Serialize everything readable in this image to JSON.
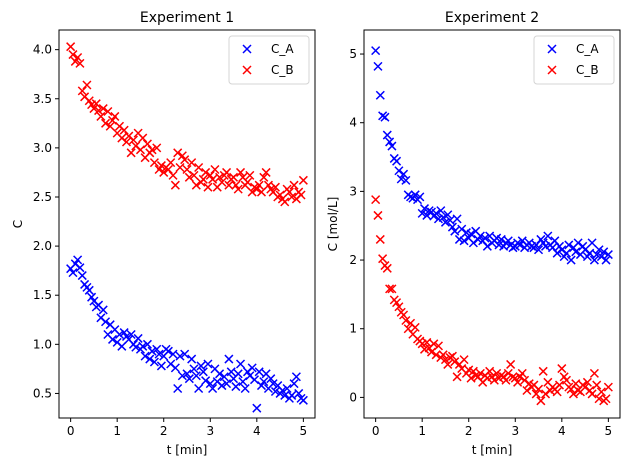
{
  "chart_data": [
    {
      "type": "scatter",
      "title": "Experiment 1",
      "xlabel": "t [min]",
      "ylabel": "C",
      "xlim": [
        -0.25,
        5.25
      ],
      "ylim": [
        0.25,
        4.2
      ],
      "xticks": [
        0,
        1,
        2,
        3,
        4,
        5
      ],
      "yticks": [
        0.5,
        1.0,
        1.5,
        2.0,
        2.5,
        3.0,
        3.5,
        4.0
      ],
      "ytick_labels": [
        "0.5",
        "1.0",
        "1.5",
        "2.0",
        "2.5",
        "3.0",
        "3.5",
        "4.0"
      ],
      "marker": "x",
      "legend_position": "top-right",
      "series": [
        {
          "name": "C_A",
          "color": "#0000ff",
          "x": [
            0.0,
            0.05,
            0.1,
            0.15,
            0.2,
            0.25,
            0.3,
            0.35,
            0.4,
            0.45,
            0.5,
            0.55,
            0.6,
            0.65,
            0.7,
            0.75,
            0.8,
            0.85,
            0.9,
            0.95,
            1.0,
            1.05,
            1.1,
            1.15,
            1.2,
            1.25,
            1.3,
            1.35,
            1.4,
            1.45,
            1.5,
            1.55,
            1.6,
            1.65,
            1.7,
            1.75,
            1.8,
            1.85,
            1.9,
            1.95,
            2.0,
            2.05,
            2.1,
            2.15,
            2.2,
            2.25,
            2.3,
            2.35,
            2.4,
            2.45,
            2.5,
            2.55,
            2.6,
            2.65,
            2.7,
            2.75,
            2.8,
            2.85,
            2.9,
            2.95,
            3.0,
            3.05,
            3.1,
            3.15,
            3.2,
            3.25,
            3.3,
            3.35,
            3.4,
            3.45,
            3.5,
            3.55,
            3.6,
            3.65,
            3.7,
            3.75,
            3.8,
            3.85,
            3.9,
            3.95,
            4.0,
            4.05,
            4.1,
            4.15,
            4.2,
            4.25,
            4.3,
            4.35,
            4.4,
            4.45,
            4.5,
            4.55,
            4.6,
            4.65,
            4.7,
            4.75,
            4.8,
            4.85,
            4.9,
            4.95,
            5.0
          ],
          "y": [
            1.77,
            1.73,
            1.82,
            1.86,
            1.78,
            1.7,
            1.61,
            1.58,
            1.55,
            1.48,
            1.44,
            1.38,
            1.4,
            1.27,
            1.35,
            1.23,
            1.1,
            1.2,
            1.05,
            1.15,
            1.02,
            1.1,
            0.98,
            1.12,
            1.08,
            1.05,
            1.1,
            1.0,
            0.97,
            1.06,
            0.95,
            0.98,
            0.88,
            1.0,
            0.85,
            0.93,
            0.82,
            0.95,
            0.9,
            0.78,
            0.88,
            0.95,
            0.93,
            0.8,
            0.9,
            0.76,
            0.55,
            0.88,
            0.68,
            0.9,
            0.7,
            0.65,
            0.85,
            0.75,
            0.68,
            0.55,
            0.78,
            0.72,
            0.63,
            0.8,
            0.6,
            0.55,
            0.75,
            0.62,
            0.7,
            0.58,
            0.67,
            0.6,
            0.85,
            0.72,
            0.65,
            0.57,
            0.7,
            0.8,
            0.62,
            0.55,
            0.72,
            0.68,
            0.76,
            0.64,
            0.35,
            0.72,
            0.58,
            0.62,
            0.7,
            0.55,
            0.65,
            0.6,
            0.52,
            0.58,
            0.5,
            0.53,
            0.48,
            0.55,
            0.45,
            0.48,
            0.6,
            0.67,
            0.5,
            0.45,
            0.43
          ]
        },
        {
          "name": "C_B",
          "color": "#ff0000",
          "x": [
            0.0,
            0.05,
            0.1,
            0.15,
            0.2,
            0.25,
            0.3,
            0.35,
            0.4,
            0.45,
            0.5,
            0.55,
            0.6,
            0.65,
            0.7,
            0.75,
            0.8,
            0.85,
            0.9,
            0.95,
            1.0,
            1.05,
            1.1,
            1.15,
            1.2,
            1.25,
            1.3,
            1.35,
            1.4,
            1.45,
            1.5,
            1.55,
            1.6,
            1.65,
            1.7,
            1.75,
            1.8,
            1.85,
            1.9,
            1.95,
            2.0,
            2.05,
            2.1,
            2.15,
            2.2,
            2.25,
            2.3,
            2.35,
            2.4,
            2.45,
            2.5,
            2.55,
            2.6,
            2.65,
            2.7,
            2.75,
            2.8,
            2.85,
            2.9,
            2.95,
            3.0,
            3.05,
            3.1,
            3.15,
            3.2,
            3.25,
            3.3,
            3.35,
            3.4,
            3.45,
            3.5,
            3.55,
            3.6,
            3.65,
            3.7,
            3.75,
            3.8,
            3.85,
            3.9,
            3.95,
            4.0,
            4.05,
            4.1,
            4.15,
            4.2,
            4.25,
            4.3,
            4.35,
            4.4,
            4.45,
            4.5,
            4.55,
            4.6,
            4.65,
            4.7,
            4.75,
            4.8,
            4.85,
            4.9,
            4.95,
            5.0
          ],
          "y": [
            4.03,
            3.95,
            3.88,
            3.92,
            3.86,
            3.58,
            3.52,
            3.64,
            3.48,
            3.44,
            3.4,
            3.45,
            3.38,
            3.32,
            3.4,
            3.25,
            3.37,
            3.22,
            3.28,
            3.32,
            3.15,
            3.22,
            3.1,
            3.18,
            3.06,
            3.12,
            2.95,
            3.08,
            3.02,
            3.15,
            2.98,
            3.1,
            2.9,
            3.04,
            2.95,
            2.98,
            2.85,
            3.0,
            2.78,
            2.82,
            2.75,
            2.8,
            2.78,
            2.85,
            2.72,
            2.62,
            2.95,
            2.8,
            2.92,
            2.88,
            2.78,
            2.7,
            2.85,
            2.72,
            2.62,
            2.8,
            2.65,
            2.68,
            2.75,
            2.6,
            2.72,
            2.68,
            2.78,
            2.6,
            2.7,
            2.65,
            2.72,
            2.75,
            2.62,
            2.68,
            2.7,
            2.62,
            2.58,
            2.75,
            2.7,
            2.62,
            2.65,
            2.72,
            2.55,
            2.6,
            2.58,
            2.62,
            2.55,
            2.7,
            2.75,
            2.62,
            2.58,
            2.55,
            2.6,
            2.5,
            2.52,
            2.48,
            2.45,
            2.58,
            2.55,
            2.5,
            2.62,
            2.48,
            2.55,
            2.52,
            2.67
          ]
        }
      ]
    },
    {
      "type": "scatter",
      "title": "Experiment 2",
      "xlabel": "t [min]",
      "ylabel": "C [mol/L]",
      "xlim": [
        -0.25,
        5.25
      ],
      "ylim": [
        -0.3,
        5.35
      ],
      "xticks": [
        0,
        1,
        2,
        3,
        4,
        5
      ],
      "yticks": [
        0,
        1,
        2,
        3,
        4,
        5
      ],
      "ytick_labels": [
        "0",
        "1",
        "2",
        "3",
        "4",
        "5"
      ],
      "marker": "x",
      "legend_position": "top-right",
      "series": [
        {
          "name": "C_A",
          "color": "#0000ff",
          "x": [
            0.0,
            0.05,
            0.1,
            0.15,
            0.2,
            0.25,
            0.3,
            0.35,
            0.4,
            0.45,
            0.5,
            0.55,
            0.6,
            0.65,
            0.7,
            0.75,
            0.8,
            0.85,
            0.9,
            0.95,
            1.0,
            1.05,
            1.1,
            1.15,
            1.2,
            1.25,
            1.3,
            1.35,
            1.4,
            1.45,
            1.5,
            1.55,
            1.6,
            1.65,
            1.7,
            1.75,
            1.8,
            1.85,
            1.9,
            1.95,
            2.0,
            2.05,
            2.1,
            2.15,
            2.2,
            2.25,
            2.3,
            2.35,
            2.4,
            2.45,
            2.5,
            2.55,
            2.6,
            2.65,
            2.7,
            2.75,
            2.8,
            2.85,
            2.9,
            2.95,
            3.0,
            3.05,
            3.1,
            3.15,
            3.2,
            3.25,
            3.3,
            3.35,
            3.4,
            3.45,
            3.5,
            3.55,
            3.6,
            3.65,
            3.7,
            3.75,
            3.8,
            3.85,
            3.9,
            3.95,
            4.0,
            4.05,
            4.1,
            4.15,
            4.2,
            4.25,
            4.3,
            4.35,
            4.4,
            4.45,
            4.5,
            4.55,
            4.6,
            4.65,
            4.7,
            4.75,
            4.8,
            4.85,
            4.9,
            4.95,
            5.0
          ],
          "y": [
            5.05,
            4.82,
            4.4,
            4.1,
            4.08,
            3.82,
            3.72,
            3.66,
            3.48,
            3.44,
            3.3,
            3.18,
            3.25,
            3.16,
            2.95,
            2.92,
            2.9,
            2.95,
            2.88,
            2.92,
            2.68,
            2.75,
            2.65,
            2.72,
            2.7,
            2.64,
            2.68,
            2.6,
            2.72,
            2.62,
            2.55,
            2.66,
            2.58,
            2.48,
            2.42,
            2.6,
            2.3,
            2.45,
            2.28,
            2.4,
            2.32,
            2.38,
            2.25,
            2.42,
            2.3,
            2.35,
            2.28,
            2.32,
            2.2,
            2.35,
            2.25,
            2.28,
            2.32,
            2.22,
            2.3,
            2.2,
            2.25,
            2.28,
            2.22,
            2.18,
            2.2,
            2.25,
            2.22,
            2.28,
            2.18,
            2.22,
            2.25,
            2.2,
            2.18,
            2.22,
            2.15,
            2.3,
            2.25,
            2.2,
            2.35,
            2.22,
            2.18,
            2.28,
            2.1,
            2.2,
            2.15,
            2.05,
            2.1,
            2.22,
            2.0,
            2.18,
            2.12,
            2.25,
            2.08,
            2.2,
            2.15,
            2.05,
            2.1,
            2.25,
            2.0,
            2.08,
            2.15,
            2.05,
            2.12,
            2.0,
            2.08
          ]
        },
        {
          "name": "C_B",
          "color": "#ff0000",
          "x": [
            0.0,
            0.05,
            0.1,
            0.15,
            0.2,
            0.25,
            0.3,
            0.35,
            0.4,
            0.45,
            0.5,
            0.55,
            0.6,
            0.65,
            0.7,
            0.75,
            0.8,
            0.85,
            0.9,
            0.95,
            1.0,
            1.05,
            1.1,
            1.15,
            1.2,
            1.25,
            1.3,
            1.35,
            1.4,
            1.45,
            1.5,
            1.55,
            1.6,
            1.65,
            1.7,
            1.75,
            1.8,
            1.85,
            1.9,
            1.95,
            2.0,
            2.05,
            2.1,
            2.15,
            2.2,
            2.25,
            2.3,
            2.35,
            2.4,
            2.45,
            2.5,
            2.55,
            2.6,
            2.65,
            2.7,
            2.75,
            2.8,
            2.85,
            2.9,
            2.95,
            3.0,
            3.05,
            3.1,
            3.15,
            3.2,
            3.25,
            3.3,
            3.35,
            3.4,
            3.45,
            3.5,
            3.55,
            3.6,
            3.65,
            3.7,
            3.75,
            3.8,
            3.85,
            3.9,
            3.95,
            4.0,
            4.05,
            4.1,
            4.15,
            4.2,
            4.25,
            4.3,
            4.35,
            4.4,
            4.45,
            4.5,
            4.55,
            4.6,
            4.65,
            4.7,
            4.75,
            4.8,
            4.85,
            4.9,
            4.95,
            5.0
          ],
          "y": [
            2.88,
            2.65,
            2.3,
            2.02,
            1.92,
            1.88,
            1.58,
            1.58,
            1.42,
            1.38,
            1.32,
            1.24,
            1.2,
            1.12,
            1.0,
            1.08,
            0.92,
            1.02,
            0.85,
            0.82,
            0.78,
            0.7,
            0.8,
            0.72,
            0.66,
            0.78,
            0.62,
            0.75,
            0.58,
            0.62,
            0.55,
            0.48,
            0.58,
            0.6,
            0.52,
            0.3,
            0.48,
            0.42,
            0.55,
            0.35,
            0.4,
            0.28,
            0.38,
            0.32,
            0.3,
            0.35,
            0.22,
            0.32,
            0.28,
            0.38,
            0.3,
            0.25,
            0.35,
            0.28,
            0.32,
            0.3,
            0.25,
            0.35,
            0.48,
            0.3,
            0.28,
            0.22,
            0.3,
            0.35,
            0.25,
            0.1,
            0.2,
            0.15,
            0.18,
            0.05,
            0.12,
            -0.05,
            0.38,
            0.05,
            0.22,
            0.1,
            0.15,
            0.12,
            0.08,
            0.18,
            0.42,
            0.3,
            0.25,
            0.15,
            0.12,
            0.05,
            0.2,
            0.1,
            0.08,
            0.18,
            0.15,
            0.22,
            0.1,
            0.05,
            0.35,
            0.18,
            -0.02,
            0.08,
            -0.05,
            -0.02,
            0.15
          ]
        }
      ]
    }
  ]
}
